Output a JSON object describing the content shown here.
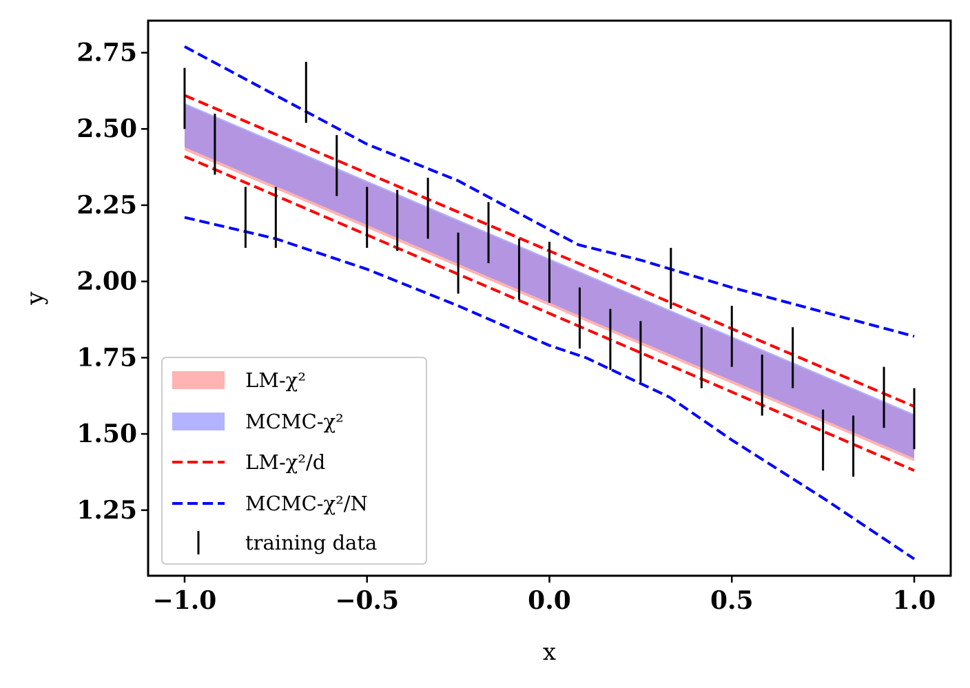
{
  "chart_data": {
    "type": "line",
    "xlabel": "x",
    "ylabel": "y",
    "xlim": [
      -1.1,
      1.1
    ],
    "ylim": [
      1.035,
      2.855
    ],
    "xticks": [
      -1.0,
      -0.5,
      0.0,
      0.5,
      1.0
    ],
    "xtick_labels": [
      "−1.0",
      "−0.5",
      "0.0",
      "0.5",
      "1.0"
    ],
    "yticks": [
      1.25,
      1.5,
      1.75,
      2.0,
      2.25,
      2.5,
      2.75
    ],
    "ytick_labels": [
      "1.25",
      "1.50",
      "1.75",
      "2.00",
      "2.25",
      "2.50",
      "2.75"
    ],
    "grid": false,
    "legend_position": "lower-left",
    "legend": [
      {
        "id": "lm_band",
        "label": "LM-χ²",
        "kind": "patch",
        "color": "#ffb3b3"
      },
      {
        "id": "mcmc_band",
        "label": "MCMC-χ²",
        "kind": "patch",
        "color": "#b3b3ff"
      },
      {
        "id": "lm_dashed",
        "label": "LM-χ²/d",
        "kind": "dashed",
        "color": "#ff0000"
      },
      {
        "id": "mcmc_dashed",
        "label": "MCMC-χ²/N",
        "kind": "dashed",
        "color": "#0000ff"
      },
      {
        "id": "training",
        "label": "training data",
        "kind": "errorbar",
        "color": "#000000"
      }
    ],
    "bands": [
      {
        "id": "lm_band",
        "color": "#ff9999",
        "opacity": 0.75,
        "x": [
          -1.0,
          1.0
        ],
        "lower": [
          2.43,
          1.41
        ],
        "upper": [
          2.58,
          1.56
        ]
      },
      {
        "id": "mcmc_band",
        "color": "#8080ff",
        "opacity": 0.6,
        "x": [
          -1.0,
          1.0
        ],
        "lower": [
          2.44,
          1.42
        ],
        "upper": [
          2.585,
          1.565
        ]
      }
    ],
    "dashed_lines": [
      {
        "id": "lm_upper",
        "color": "#ff0000",
        "x": [
          -1.0,
          1.0
        ],
        "y": [
          2.61,
          1.59
        ]
      },
      {
        "id": "lm_lower",
        "color": "#ff0000",
        "x": [
          -1.0,
          1.0
        ],
        "y": [
          2.41,
          1.38
        ]
      },
      {
        "id": "mcmc_upper",
        "color": "#0000ff",
        "x": [
          -1.0,
          -0.75,
          -0.5,
          -0.25,
          0.0,
          0.08,
          0.25,
          0.5,
          0.75,
          1.0
        ],
        "y": [
          2.77,
          2.61,
          2.45,
          2.33,
          2.17,
          2.12,
          2.07,
          1.98,
          1.9,
          1.82
        ]
      },
      {
        "id": "mcmc_lower",
        "color": "#0000ff",
        "x": [
          -1.0,
          -0.75,
          -0.5,
          -0.25,
          0.0,
          0.1,
          0.33,
          0.5,
          0.75,
          1.0
        ],
        "y": [
          2.21,
          2.14,
          2.04,
          1.92,
          1.79,
          1.75,
          1.62,
          1.48,
          1.29,
          1.09
        ]
      },
      {
        "id": "hidden_marker_line",
        "color": "#ffffff",
        "x": [],
        "y": []
      }
    ],
    "training_data": {
      "color": "#000000",
      "x": [
        -1.0,
        -0.917,
        -0.833,
        -0.75,
        -0.667,
        -0.583,
        -0.5,
        -0.417,
        -0.333,
        -0.25,
        -0.167,
        -0.083,
        0.0,
        0.083,
        0.167,
        0.25,
        0.333,
        0.417,
        0.5,
        0.583,
        0.667,
        0.75,
        0.833,
        0.917,
        1.0
      ],
      "y": [
        2.6,
        2.45,
        2.21,
        2.21,
        2.62,
        2.38,
        2.21,
        2.2,
        2.24,
        2.06,
        2.16,
        2.04,
        2.03,
        1.88,
        1.81,
        1.77,
        2.01,
        1.75,
        1.82,
        1.66,
        1.75,
        1.48,
        1.46,
        1.62,
        1.55
      ],
      "err": [
        0.1,
        0.1,
        0.1,
        0.1,
        0.1,
        0.1,
        0.1,
        0.1,
        0.1,
        0.1,
        0.1,
        0.1,
        0.1,
        0.1,
        0.1,
        0.1,
        0.1,
        0.1,
        0.1,
        0.1,
        0.1,
        0.1,
        0.1,
        0.1,
        0.1
      ]
    }
  }
}
